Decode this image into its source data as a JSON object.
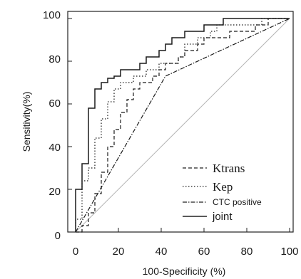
{
  "chart_data": {
    "type": "line",
    "xlabel": "100-Specificity (%)",
    "ylabel": "Sensitivity(%)",
    "xlim": [
      0,
      100
    ],
    "ylim": [
      0,
      100
    ],
    "x_ticks": [
      "0",
      "20",
      "40",
      "60",
      "80",
      "100"
    ],
    "y_ticks": [
      "0",
      "20",
      "40",
      "60",
      "80",
      "100"
    ],
    "reference_line": [
      [
        0,
        0
      ],
      [
        100,
        100
      ]
    ],
    "legend_position": "bottom-right",
    "series": [
      {
        "name": "Ktrans",
        "style": "dashed",
        "points": [
          [
            0,
            0
          ],
          [
            3,
            0
          ],
          [
            3,
            3
          ],
          [
            6,
            3
          ],
          [
            6,
            9
          ],
          [
            9,
            9
          ],
          [
            9,
            18
          ],
          [
            12,
            18
          ],
          [
            12,
            28
          ],
          [
            15,
            28
          ],
          [
            15,
            40
          ],
          [
            18,
            40
          ],
          [
            18,
            48
          ],
          [
            21,
            48
          ],
          [
            21,
            56
          ],
          [
            24,
            56
          ],
          [
            24,
            62
          ],
          [
            27,
            62
          ],
          [
            27,
            67
          ],
          [
            30,
            67
          ],
          [
            30,
            70
          ],
          [
            36,
            70
          ],
          [
            36,
            73
          ],
          [
            39,
            73
          ],
          [
            39,
            76
          ],
          [
            42,
            76
          ],
          [
            42,
            79
          ],
          [
            48,
            79
          ],
          [
            48,
            82
          ],
          [
            51,
            82
          ],
          [
            51,
            85
          ],
          [
            57,
            85
          ],
          [
            57,
            88
          ],
          [
            60,
            88
          ],
          [
            60,
            91
          ],
          [
            72,
            91
          ],
          [
            72,
            94
          ],
          [
            84,
            94
          ],
          [
            84,
            97
          ],
          [
            90,
            97
          ],
          [
            90,
            100
          ],
          [
            100,
            100
          ]
        ]
      },
      {
        "name": "Kep",
        "style": "dotted",
        "points": [
          [
            0,
            0
          ],
          [
            0,
            3
          ],
          [
            0,
            6
          ],
          [
            3,
            6
          ],
          [
            3,
            9
          ],
          [
            3,
            15
          ],
          [
            3,
            24
          ],
          [
            6,
            24
          ],
          [
            6,
            30
          ],
          [
            9,
            30
          ],
          [
            9,
            44
          ],
          [
            12,
            44
          ],
          [
            12,
            53
          ],
          [
            15,
            53
          ],
          [
            15,
            61
          ],
          [
            18,
            61
          ],
          [
            18,
            67
          ],
          [
            21,
            67
          ],
          [
            21,
            70
          ],
          [
            27,
            70
          ],
          [
            27,
            73
          ],
          [
            33,
            73
          ],
          [
            33,
            76
          ],
          [
            39,
            76
          ],
          [
            39,
            79
          ],
          [
            48,
            79
          ],
          [
            48,
            82
          ],
          [
            51,
            82
          ],
          [
            51,
            88
          ],
          [
            57,
            88
          ],
          [
            57,
            91
          ],
          [
            63,
            91
          ],
          [
            63,
            94
          ],
          [
            66,
            94
          ],
          [
            66,
            97
          ],
          [
            87,
            97
          ],
          [
            87,
            100
          ],
          [
            100,
            100
          ]
        ]
      },
      {
        "name": "CTC positive",
        "style": "dashdot",
        "points": [
          [
            0,
            0
          ],
          [
            42,
            73
          ],
          [
            100,
            100
          ]
        ]
      },
      {
        "name": "joint",
        "style": "solid",
        "points": [
          [
            0,
            0
          ],
          [
            0,
            20
          ],
          [
            3,
            20
          ],
          [
            3,
            32
          ],
          [
            6,
            32
          ],
          [
            6,
            58
          ],
          [
            9,
            58
          ],
          [
            9,
            67
          ],
          [
            12,
            67
          ],
          [
            12,
            70
          ],
          [
            15,
            70
          ],
          [
            15,
            72
          ],
          [
            18,
            72
          ],
          [
            18,
            73
          ],
          [
            21,
            73
          ],
          [
            21,
            76
          ],
          [
            30,
            76
          ],
          [
            30,
            79
          ],
          [
            33,
            79
          ],
          [
            33,
            82
          ],
          [
            39,
            82
          ],
          [
            39,
            85
          ],
          [
            42,
            85
          ],
          [
            42,
            88
          ],
          [
            45,
            88
          ],
          [
            45,
            91
          ],
          [
            51,
            91
          ],
          [
            51,
            94
          ],
          [
            60,
            94
          ],
          [
            60,
            97
          ],
          [
            69,
            97
          ],
          [
            69,
            100
          ],
          [
            100,
            100
          ]
        ]
      }
    ]
  },
  "legend": {
    "ktrans": "Ktrans",
    "kep": "Kep",
    "ctc": "CTC positive",
    "joint": "joint"
  }
}
